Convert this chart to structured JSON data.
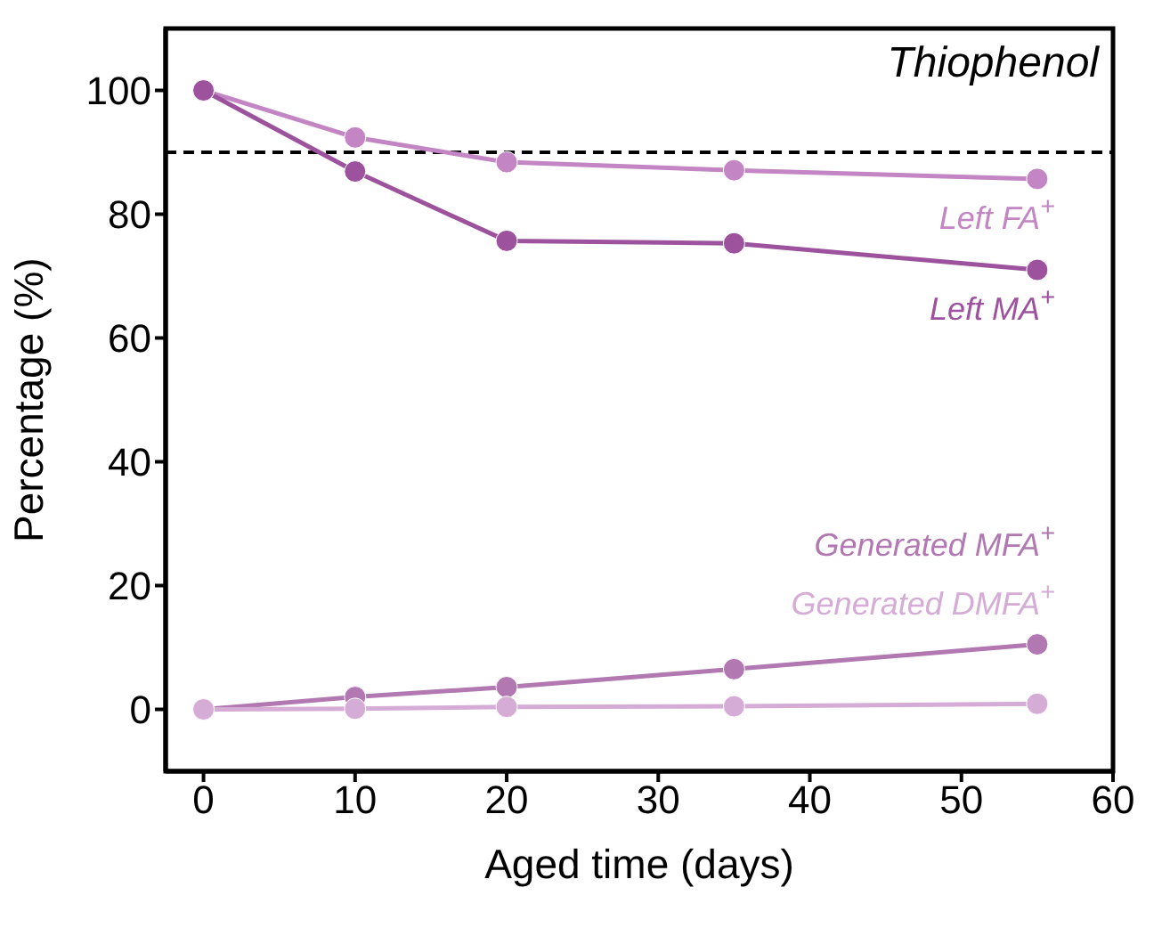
{
  "chart_data": {
    "type": "line",
    "title": "Thiophenol",
    "xlabel": "Aged time (days)",
    "ylabel": "Percentage (%)",
    "x": [
      0,
      10,
      20,
      35,
      55
    ],
    "series": [
      {
        "name": "Left FA$^{+}$",
        "color": "#c385c3",
        "values": [
          100,
          92.4,
          88.4,
          87.1,
          85.7
        ]
      },
      {
        "name": "Left MA$^{+}$",
        "color": "#9c529c",
        "values": [
          100,
          86.9,
          75.7,
          75.3,
          71.0
        ]
      },
      {
        "name": "Generated MFA$^{+}$",
        "color": "#b178b1",
        "values": [
          0,
          2.0,
          3.6,
          6.5,
          10.5
        ]
      },
      {
        "name": "Generated DMFA$^{+}$",
        "color": "#d5acd5",
        "values": [
          0,
          0.1,
          0.4,
          0.5,
          0.9
        ]
      }
    ],
    "xlim": [
      -2.5,
      60
    ],
    "xticks": [
      0,
      10,
      20,
      30,
      40,
      50,
      60
    ],
    "ylim": [
      -10,
      110
    ],
    "yticks": [
      0,
      20,
      40,
      60,
      80,
      100
    ],
    "ref_lines": [
      {
        "axis": "y",
        "value": 90,
        "color": "#000000",
        "line_style": "dashed"
      }
    ],
    "marker": "circle",
    "line_style": "solid",
    "grid": false
  }
}
